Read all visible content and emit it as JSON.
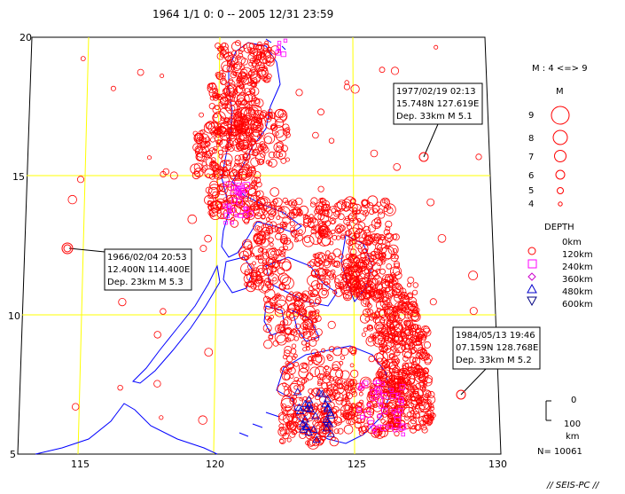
{
  "title": "1964 1/1   0: 0 -- 2005 12/31 23:59",
  "lat_labels": [
    "20",
    "15",
    "10",
    "5"
  ],
  "lon_labels": [
    "115",
    "120",
    "125",
    "130"
  ],
  "magnitude_legend": {
    "range_label": "M : 4 <=> 9",
    "header": "M",
    "items": [
      "9",
      "8",
      "7",
      "6",
      "5",
      "4"
    ]
  },
  "depth_legend": {
    "header": "DEPTH",
    "items": [
      "0km",
      "120km",
      "240km",
      "360km",
      "480km",
      "600km"
    ],
    "colors": [
      "#ff0000",
      "#ff00ff",
      "#cc00cc",
      "#0000cc",
      "#000080"
    ]
  },
  "scale": {
    "top": "0",
    "bottom": "100",
    "unit": "km"
  },
  "count_label": "N= 10061",
  "credit": "// SEIS-PC //",
  "callouts": [
    {
      "line1": "1977/02/19 02:13",
      "line2": "15.748N  127.619E",
      "line3": "Dep. 33km    M 5.1"
    },
    {
      "line1": "1966/02/04 20:53",
      "line2": "12.400N  114.400E",
      "line3": "Dep. 23km    M 5.3"
    },
    {
      "line1": "1984/05/13 19:46",
      "line2": "07.159N  128.768E",
      "line3": "Dep. 33km    M 5.2"
    }
  ],
  "colors": {
    "grid": "#ffff00",
    "coast": "#0000ff",
    "quake": "#ff0000",
    "deep": "#ff00ff"
  }
}
